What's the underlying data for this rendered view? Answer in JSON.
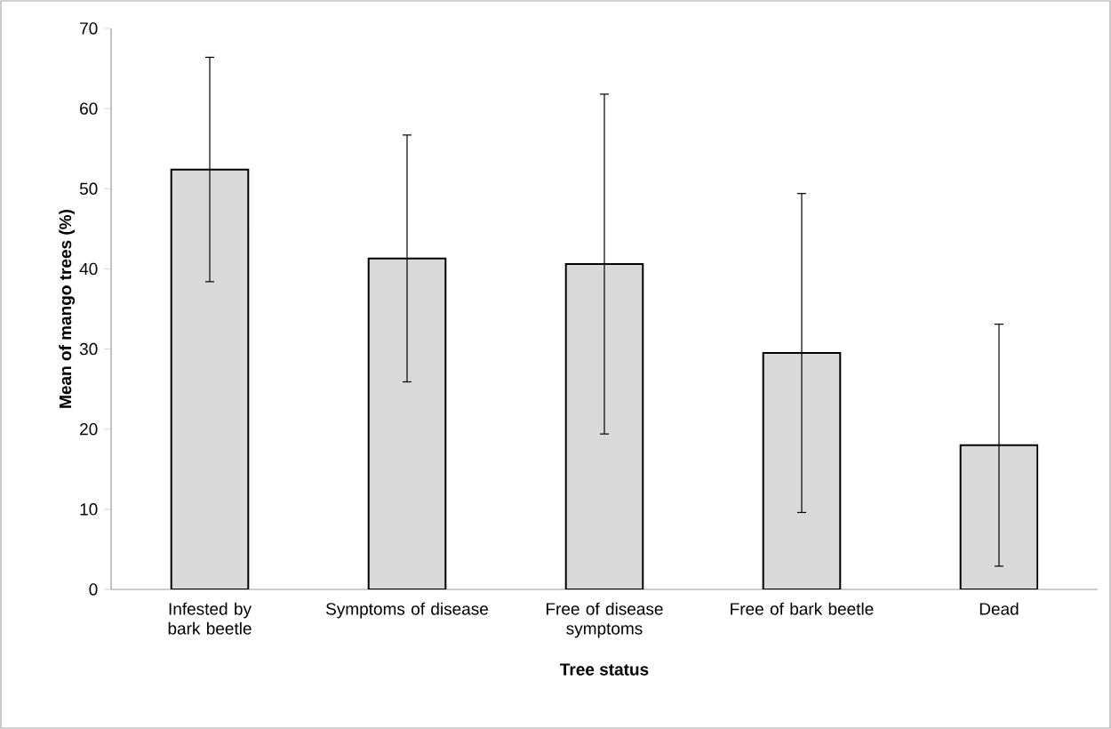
{
  "chart_data": {
    "type": "bar",
    "xlabel": "Tree status",
    "ylabel": "Mean of mango trees (%)",
    "categories": [
      "Infested by bark beetle",
      "Symptoms of disease",
      "Free of disease symptoms",
      "Free of bark beetle",
      "Dead"
    ],
    "values": [
      52.4,
      41.3,
      40.6,
      29.5,
      18.0
    ],
    "errors": [
      14.0,
      15.4,
      21.2,
      19.9,
      15.1
    ],
    "color": "#d9d9d9",
    "ylim": [
      0,
      70
    ],
    "yticks": [
      0,
      10,
      20,
      30,
      40,
      50,
      60,
      70
    ]
  }
}
